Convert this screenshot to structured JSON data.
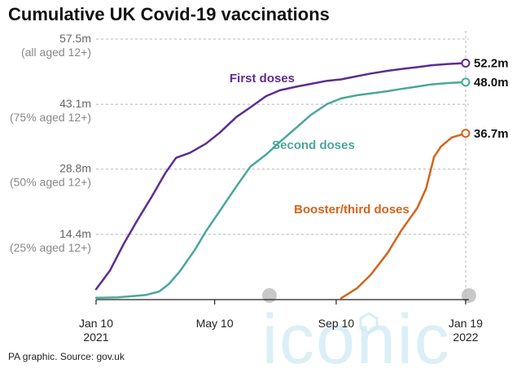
{
  "chart_data": {
    "type": "line",
    "title": "Cumulative UK Covid-19 vaccinations",
    "source": "PA graphic. Source: gov.uk",
    "watermark": "iconic",
    "x_domain": [
      "2021-01-10",
      "2022-01-19"
    ],
    "ylim": [
      0,
      57.5
    ],
    "y_ticks": [
      {
        "value": 57.5,
        "label": "57.5m",
        "sublabel": "(all aged 12+)"
      },
      {
        "value": 43.1,
        "label": "43.1m",
        "sublabel": "(75% aged 12+)"
      },
      {
        "value": 28.8,
        "label": "28.8m",
        "sublabel": "(50% aged 12+)"
      },
      {
        "value": 14.4,
        "label": "14.4m",
        "sublabel": "(25% aged 12+)"
      }
    ],
    "x_ticks": [
      {
        "date": "2021-01-10",
        "label": "Jan 10",
        "sublabel": "2021"
      },
      {
        "date": "2021-05-10",
        "label": "May 10",
        "sublabel": ""
      },
      {
        "date": "2021-09-10",
        "label": "Sep 10",
        "sublabel": ""
      },
      {
        "date": "2022-01-19",
        "label": "Jan 19",
        "sublabel": "2022"
      }
    ],
    "grid": true,
    "series": [
      {
        "name": "First doses",
        "color": "#5c2d91",
        "end_label": "52.2m",
        "points": [
          [
            "2021-01-10",
            2.3
          ],
          [
            "2021-01-24",
            6.4
          ],
          [
            "2021-02-07",
            12.3
          ],
          [
            "2021-02-21",
            17.6
          ],
          [
            "2021-03-07",
            22.6
          ],
          [
            "2021-03-21",
            27.9
          ],
          [
            "2021-04-01",
            31.3
          ],
          [
            "2021-04-15",
            32.4
          ],
          [
            "2021-05-01",
            34.4
          ],
          [
            "2021-05-15",
            36.8
          ],
          [
            "2021-06-01",
            40.3
          ],
          [
            "2021-06-15",
            42.4
          ],
          [
            "2021-07-01",
            44.9
          ],
          [
            "2021-07-15",
            46.2
          ],
          [
            "2021-08-01",
            47.0
          ],
          [
            "2021-08-15",
            47.6
          ],
          [
            "2021-09-01",
            48.3
          ],
          [
            "2021-09-15",
            48.6
          ],
          [
            "2021-10-01",
            49.3
          ],
          [
            "2021-10-15",
            49.9
          ],
          [
            "2021-11-01",
            50.5
          ],
          [
            "2021-11-15",
            50.9
          ],
          [
            "2021-12-01",
            51.3
          ],
          [
            "2021-12-15",
            51.7
          ],
          [
            "2022-01-01",
            52.0
          ],
          [
            "2022-01-19",
            52.2
          ]
        ]
      },
      {
        "name": "Second doses",
        "color": "#4aa79b",
        "end_label": "48.0m",
        "points": [
          [
            "2021-01-10",
            0.4
          ],
          [
            "2021-02-01",
            0.5
          ],
          [
            "2021-03-01",
            1.0
          ],
          [
            "2021-03-15",
            1.8
          ],
          [
            "2021-03-25",
            3.5
          ],
          [
            "2021-04-05",
            6.3
          ],
          [
            "2021-04-20",
            11.0
          ],
          [
            "2021-05-01",
            15.0
          ],
          [
            "2021-05-15",
            19.5
          ],
          [
            "2021-06-01",
            25.0
          ],
          [
            "2021-06-15",
            29.3
          ],
          [
            "2021-07-01",
            32.0
          ],
          [
            "2021-07-15",
            34.8
          ],
          [
            "2021-08-01",
            38.0
          ],
          [
            "2021-08-15",
            40.7
          ],
          [
            "2021-09-01",
            43.2
          ],
          [
            "2021-09-15",
            44.4
          ],
          [
            "2021-10-01",
            45.1
          ],
          [
            "2021-10-15",
            45.5
          ],
          [
            "2021-11-01",
            46.0
          ],
          [
            "2021-11-15",
            46.5
          ],
          [
            "2021-12-01",
            47.0
          ],
          [
            "2021-12-15",
            47.5
          ],
          [
            "2022-01-01",
            47.8
          ],
          [
            "2022-01-19",
            48.0
          ]
        ]
      },
      {
        "name": "Booster/third doses",
        "color": "#d4641c",
        "end_label": "36.7m",
        "points": [
          [
            "2021-09-15",
            0.3
          ],
          [
            "2021-10-01",
            2.5
          ],
          [
            "2021-10-15",
            5.5
          ],
          [
            "2021-11-01",
            10.3
          ],
          [
            "2021-11-15",
            15.3
          ],
          [
            "2021-12-01",
            20.2
          ],
          [
            "2021-12-10",
            24.5
          ],
          [
            "2021-12-18",
            31.5
          ],
          [
            "2021-12-25",
            33.8
          ],
          [
            "2022-01-05",
            35.8
          ],
          [
            "2022-01-19",
            36.7
          ]
        ]
      }
    ]
  }
}
